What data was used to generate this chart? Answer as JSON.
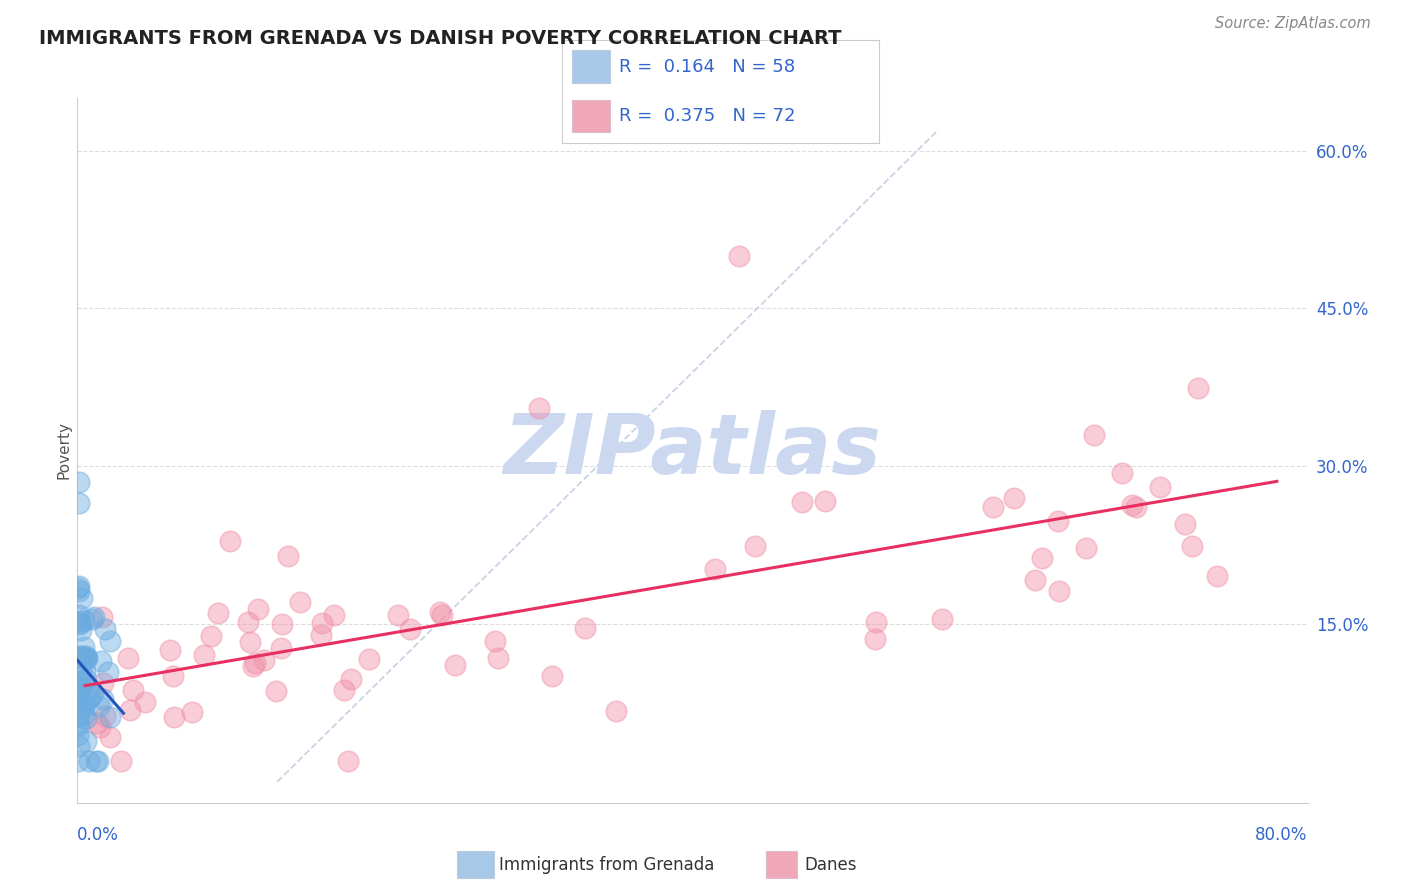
{
  "title": "IMMIGRANTS FROM GRENADA VS DANISH POVERTY CORRELATION CHART",
  "source": "Source: ZipAtlas.com",
  "ylabel": "Poverty",
  "right_yticklabels": [
    "",
    "15.0%",
    "30.0%",
    "45.0%",
    "60.0%"
  ],
  "right_ytick_vals": [
    0.0,
    0.15,
    0.3,
    0.45,
    0.6
  ],
  "legend_text1": "R =  0.164   N = 58",
  "legend_text2": "R =  0.375   N = 72",
  "legend_color1": "#a8c8e8",
  "legend_color2": "#f0a8b8",
  "blue_scatter_color": "#6aabe0",
  "pink_scatter_color": "#f090a8",
  "blue_line_color": "#2255bb",
  "pink_line_color": "#e83060",
  "diag_line_color": "#c0cce0",
  "watermark_color": "#ccd8f0",
  "text_color_blue": "#3366cc",
  "title_color": "#222222",
  "source_color": "#888888",
  "xlim": [
    0.0,
    0.8
  ],
  "ylim": [
    -0.02,
    0.65
  ],
  "grid_color": "#dddddd",
  "legend_label1": "Immigrants from Grenada",
  "legend_label2": "Danes"
}
